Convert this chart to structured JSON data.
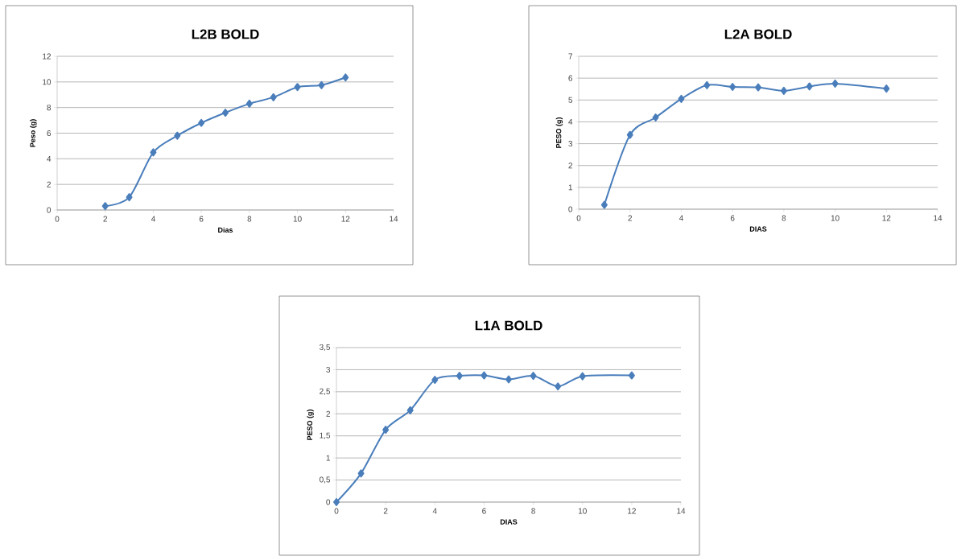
{
  "chart_data": [
    {
      "type": "line",
      "title": "L2B BOLD",
      "xlabel": "Dias",
      "ylabel": "Peso (g)",
      "x": [
        2,
        3,
        4,
        5,
        6,
        7,
        8,
        9,
        10,
        11,
        12
      ],
      "values": [
        0.3,
        1.0,
        4.5,
        5.8,
        6.8,
        7.6,
        8.3,
        8.8,
        9.6,
        9.75,
        10.35
      ],
      "color": "#4a7ebb",
      "marker": "diamond",
      "grid": "y",
      "xlim": [
        0,
        14
      ],
      "ylim": [
        0,
        12
      ],
      "xticks": [
        0,
        2,
        4,
        6,
        8,
        10,
        12,
        14
      ],
      "yticks": [
        0,
        2,
        4,
        6,
        8,
        10,
        12
      ]
    },
    {
      "type": "line",
      "title": "L2A  BOLD",
      "xlabel": "DIAS",
      "ylabel": "PESO (g)",
      "x": [
        1,
        2,
        3,
        4,
        5,
        6,
        7,
        8,
        9,
        10,
        12
      ],
      "values": [
        0.2,
        3.4,
        4.2,
        5.05,
        5.68,
        5.6,
        5.58,
        5.42,
        5.62,
        5.75,
        5.52
      ],
      "color": "#4a7ebb",
      "marker": "diamond",
      "grid": "y",
      "xlim": [
        0,
        14
      ],
      "ylim": [
        0,
        7
      ],
      "xticks": [
        0,
        2,
        4,
        6,
        8,
        10,
        12,
        14
      ],
      "yticks": [
        0,
        1,
        2,
        3,
        4,
        5,
        6,
        7
      ]
    },
    {
      "type": "line",
      "title": "L1A  BOLD",
      "xlabel": "DIAS",
      "ylabel": "PESO (g)",
      "x": [
        0,
        1,
        2,
        3,
        4,
        5,
        6,
        7,
        8,
        9,
        10,
        12
      ],
      "values": [
        0,
        0.65,
        1.64,
        2.08,
        2.77,
        2.86,
        2.87,
        2.78,
        2.86,
        2.62,
        2.85,
        2.87
      ],
      "color": "#4a7ebb",
      "marker": "diamond",
      "grid": "y",
      "xlim": [
        0,
        14
      ],
      "ylim": [
        0,
        3.5
      ],
      "xticks": [
        0,
        2,
        4,
        6,
        8,
        10,
        12,
        14
      ],
      "yticks": [
        0,
        {
          "value": 0.5,
          "label": "0,5"
        },
        1,
        {
          "value": 1.5,
          "label": "1,5"
        },
        2,
        {
          "value": 2.5,
          "label": "2,5"
        },
        3,
        {
          "value": 3.5,
          "label": "3,5"
        }
      ]
    }
  ]
}
